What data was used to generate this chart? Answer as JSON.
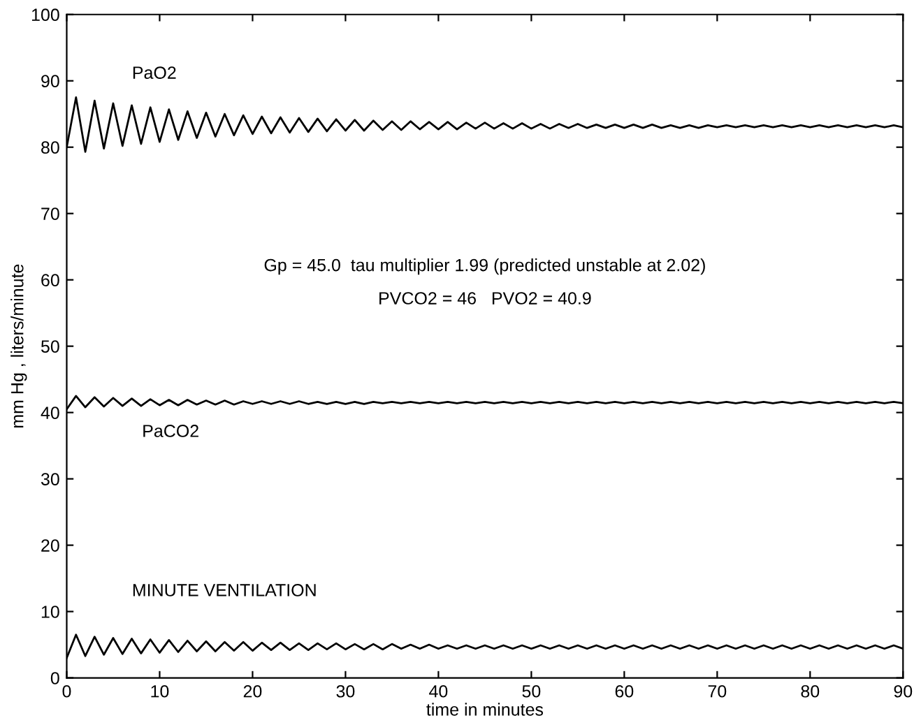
{
  "chart_data": {
    "type": "line",
    "xlabel": "time in minutes",
    "ylabel": "mm Hg , liters/minute",
    "x": [
      0,
      1,
      2,
      3,
      4,
      5,
      6,
      7,
      8,
      9,
      10,
      11,
      12,
      13,
      14,
      15,
      16,
      17,
      18,
      19,
      20,
      21,
      22,
      23,
      24,
      25,
      26,
      27,
      28,
      29,
      30,
      31,
      32,
      33,
      34,
      35,
      36,
      37,
      38,
      39,
      40,
      41,
      42,
      43,
      44,
      45,
      46,
      47,
      48,
      49,
      50,
      51,
      52,
      53,
      54,
      55,
      56,
      57,
      58,
      59,
      60,
      61,
      62,
      63,
      64,
      65,
      66,
      67,
      68,
      69,
      70,
      71,
      72,
      73,
      74,
      75,
      76,
      77,
      78,
      79,
      80,
      81,
      82,
      83,
      84,
      85,
      86,
      87,
      88,
      89,
      90
    ],
    "series": [
      {
        "color": "#000000",
        "values": [
          80.0,
          87.5,
          79.3,
          87.0,
          79.8,
          86.6,
          80.2,
          86.3,
          80.5,
          86.0,
          80.8,
          85.7,
          81.1,
          85.4,
          81.4,
          85.2,
          81.6,
          85.0,
          81.8,
          84.8,
          82.0,
          84.6,
          82.1,
          84.5,
          82.2,
          84.4,
          82.3,
          84.3,
          82.4,
          84.2,
          82.5,
          84.1,
          82.5,
          84.0,
          82.6,
          83.9,
          82.6,
          83.9,
          82.7,
          83.8,
          82.7,
          83.8,
          82.7,
          83.7,
          82.8,
          83.7,
          82.8,
          83.6,
          82.8,
          83.6,
          82.8,
          83.5,
          82.8,
          83.5,
          82.9,
          83.5,
          82.9,
          83.4,
          82.9,
          83.4,
          82.9,
          83.4,
          82.9,
          83.4,
          82.9,
          83.3,
          82.9,
          83.3,
          82.9,
          83.3,
          83.0,
          83.3,
          83.0,
          83.3,
          83.0,
          83.3,
          83.0,
          83.3,
          83.0,
          83.3,
          83.0,
          83.3,
          83.0,
          83.3,
          83.0,
          83.3,
          83.0,
          83.3,
          83.0,
          83.3,
          83.0
        ]
      },
      {
        "color": "#000000",
        "values": [
          40.5,
          42.5,
          40.8,
          42.3,
          40.9,
          42.2,
          41.0,
          42.1,
          41.0,
          42.0,
          41.1,
          41.9,
          41.1,
          41.9,
          41.2,
          41.8,
          41.2,
          41.8,
          41.2,
          41.7,
          41.3,
          41.7,
          41.3,
          41.7,
          41.3,
          41.7,
          41.3,
          41.6,
          41.3,
          41.6,
          41.3,
          41.6,
          41.3,
          41.6,
          41.4,
          41.6,
          41.4,
          41.6,
          41.4,
          41.6,
          41.4,
          41.6,
          41.4,
          41.6,
          41.4,
          41.6,
          41.4,
          41.6,
          41.4,
          41.6,
          41.4,
          41.6,
          41.4,
          41.6,
          41.4,
          41.6,
          41.4,
          41.6,
          41.4,
          41.6,
          41.4,
          41.6,
          41.4,
          41.6,
          41.4,
          41.6,
          41.4,
          41.6,
          41.4,
          41.6,
          41.4,
          41.6,
          41.4,
          41.6,
          41.4,
          41.6,
          41.4,
          41.6,
          41.4,
          41.6,
          41.4,
          41.6,
          41.4,
          41.6,
          41.4,
          41.6,
          41.4,
          41.6,
          41.4,
          41.6,
          41.4
        ]
      },
      {
        "color": "#000000",
        "values": [
          3.0,
          6.5,
          3.3,
          6.2,
          3.5,
          6.0,
          3.6,
          5.9,
          3.7,
          5.8,
          3.8,
          5.7,
          3.9,
          5.6,
          4.0,
          5.5,
          4.0,
          5.4,
          4.1,
          5.4,
          4.1,
          5.3,
          4.2,
          5.3,
          4.2,
          5.2,
          4.2,
          5.2,
          4.3,
          5.2,
          4.3,
          5.1,
          4.3,
          5.1,
          4.3,
          5.1,
          4.4,
          5.0,
          4.4,
          5.0,
          4.4,
          4.9,
          4.4,
          4.9,
          4.4,
          4.9,
          4.4,
          4.9,
          4.4,
          4.9,
          4.4,
          4.9,
          4.4,
          4.9,
          4.4,
          4.9,
          4.4,
          4.9,
          4.4,
          4.9,
          4.4,
          4.9,
          4.4,
          4.9,
          4.4,
          4.9,
          4.4,
          4.9,
          4.4,
          4.9,
          4.4,
          4.9,
          4.4,
          4.9,
          4.4,
          4.9,
          4.4,
          4.9,
          4.4,
          4.9,
          4.4,
          4.9,
          4.4,
          4.9,
          4.4,
          4.9,
          4.4,
          4.9,
          4.4,
          4.9,
          4.4
        ]
      }
    ],
    "annotations": [
      "PaO2",
      "PaCO2",
      "MINUTE VENTILATION",
      "Gp = 45.0  tau multiplier 1.99 (predicted unstable at 2.02)",
      "PVCO2 = 46   PVO2 = 40.9"
    ],
    "xlim": [
      0,
      90
    ],
    "xticks": [
      0,
      10,
      20,
      30,
      40,
      50,
      60,
      70,
      80,
      90
    ],
    "ylim": [
      0,
      100
    ],
    "yticks": [
      0,
      10,
      20,
      30,
      40,
      50,
      60,
      70,
      80,
      90,
      100
    ],
    "grid": false,
    "legend": false,
    "marker": "none",
    "line_style": "solid"
  }
}
